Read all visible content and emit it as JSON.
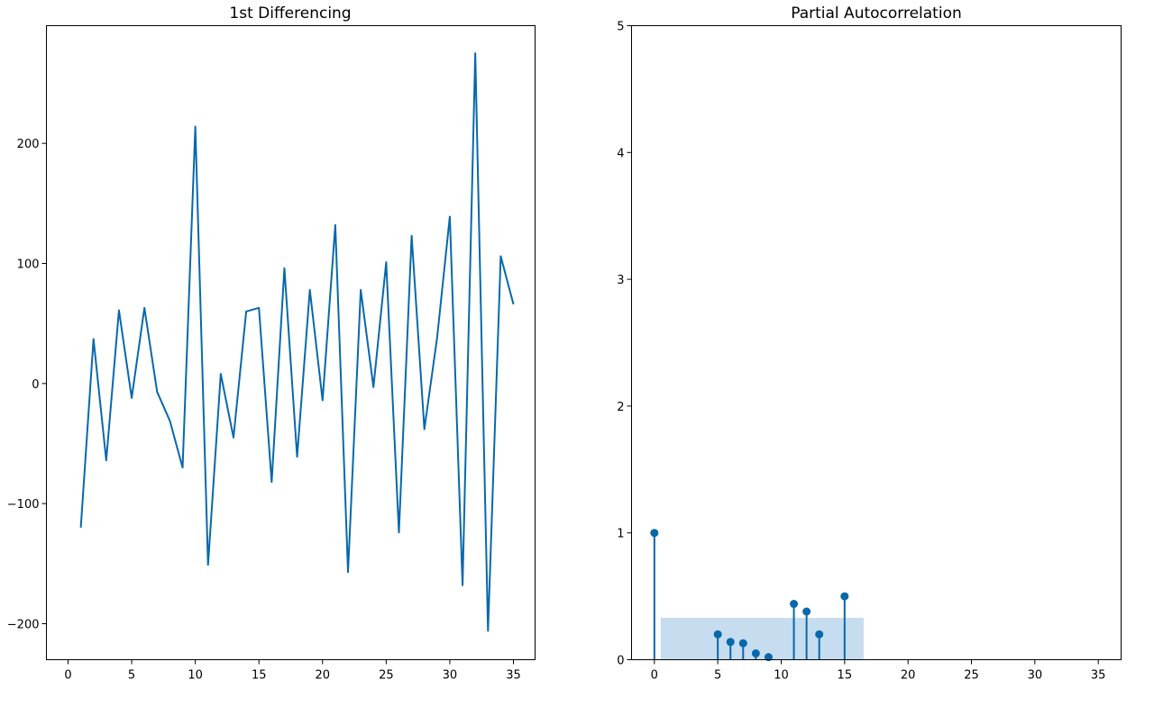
{
  "chart_data": [
    {
      "type": "line",
      "title": "1st Differencing",
      "xlabel": "",
      "ylabel": "",
      "xlim": [
        -1.7,
        36.7
      ],
      "ylim": [
        -230,
        298
      ],
      "xticks": [
        0,
        5,
        10,
        15,
        20,
        25,
        30,
        35
      ],
      "yticks": [
        -200,
        -100,
        0,
        100,
        200
      ],
      "ytick_labels": [
        "−200",
        "−100",
        "0",
        "100",
        "200"
      ],
      "grid": false,
      "color": "#0868ac",
      "series": [
        {
          "x": [
            1,
            2,
            3,
            4,
            5,
            6,
            7,
            8,
            9,
            10,
            11,
            12,
            13,
            14,
            15,
            16,
            17,
            18,
            19,
            20,
            21,
            22,
            23,
            24,
            25,
            26,
            27,
            28,
            29,
            30,
            31,
            32,
            33,
            34,
            35
          ],
          "values": [
            -120,
            37,
            -64,
            61,
            -12,
            63,
            -7,
            -31,
            -70,
            214,
            -151,
            8,
            -45,
            60,
            63,
            -82,
            96,
            -61,
            78,
            -14,
            132,
            -157,
            78,
            -3,
            101,
            -124,
            123,
            -38,
            38,
            139,
            -168,
            275,
            -206,
            106,
            66
          ]
        }
      ]
    },
    {
      "type": "stem",
      "title": "Partial Autocorrelation",
      "xlabel": "",
      "ylabel": "",
      "xlim": [
        -1.8,
        36.8
      ],
      "ylim": [
        0,
        5
      ],
      "xticks": [
        0,
        5,
        10,
        15,
        20,
        25,
        30,
        35
      ],
      "yticks": [
        0,
        1,
        2,
        3,
        4,
        5
      ],
      "grid": false,
      "color": "#0868ac",
      "confidence_band": {
        "x_range": [
          0.5,
          16.5
        ],
        "upper": 0.33,
        "lower": 0,
        "color": "#c6dcef"
      },
      "series": [
        {
          "x": [
            0,
            5,
            6,
            7,
            8,
            9,
            11,
            12,
            13,
            15
          ],
          "values": [
            1.0,
            0.2,
            0.14,
            0.13,
            0.05,
            0.02,
            0.44,
            0.38,
            0.2,
            0.5
          ]
        }
      ]
    }
  ]
}
